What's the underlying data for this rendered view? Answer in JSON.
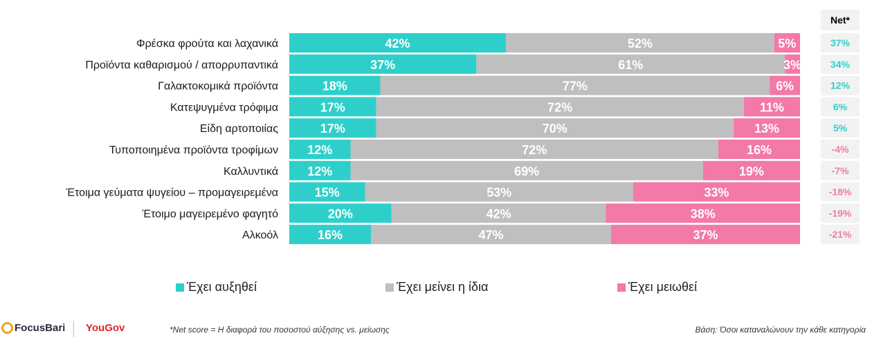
{
  "chart_data": {
    "type": "bar",
    "stacked": true,
    "orientation": "horizontal",
    "categories": [
      "Φρέσκα φρούτα και λαχανικά",
      "Προϊόντα καθαρισμού / απορρυπαντικά",
      "Γαλακτοκομικά προϊόντα",
      "Κατεψυγμένα τρόφιμα",
      "Είδη αρτοποιίας",
      "Τυποποιημένα προϊόντα τροφίμων",
      "Καλλυντικά",
      "Έτοιμα γεύματα ψυγείου – προμαγειρεμένα",
      "Έτοιμο μαγειρεμένο φαγητό",
      "Αλκοόλ"
    ],
    "series": [
      {
        "name": "Έχει αυξηθεί",
        "color": "#2ecfcb",
        "values": [
          42,
          37,
          18,
          17,
          17,
          12,
          12,
          15,
          20,
          16
        ]
      },
      {
        "name": "Έχει μείνει η ίδια",
        "color": "#bfbfbf",
        "values": [
          52,
          61,
          77,
          72,
          70,
          72,
          69,
          53,
          42,
          47
        ]
      },
      {
        "name": "Έχει μειωθεί",
        "color": "#f279a8",
        "values": [
          5,
          3,
          6,
          11,
          13,
          16,
          19,
          33,
          38,
          37
        ]
      }
    ],
    "net": {
      "header": "Net*",
      "values": [
        "37%",
        "34%",
        "12%",
        "6%",
        "5%",
        "-4%",
        "-7%",
        "-18%",
        "-19%",
        "-21%"
      ],
      "positive_color": "#2ecfcb",
      "negative_color": "#f279a8"
    },
    "xlim": [
      0,
      100
    ],
    "legend_position": "bottom"
  },
  "legend": {
    "increased": "Έχει αυξηθεί",
    "same": "Έχει μείνει η ίδια",
    "decreased": "Έχει μειωθεί"
  },
  "footer": {
    "net_note": "*Net score = Η διαφορά του ποσοστού αύξησης vs. μείωσης",
    "base_note": "Βάση: Όσοι καταναλώνουν την κάθε κατηγορία",
    "logo_focusbari": "FocusBari",
    "logo_yougov": "YouGov"
  },
  "colors": {
    "increased": "#2ecfcb",
    "same": "#bfbfbf",
    "decreased": "#f279a8",
    "net_cell_bg": "#f2f2f2"
  }
}
